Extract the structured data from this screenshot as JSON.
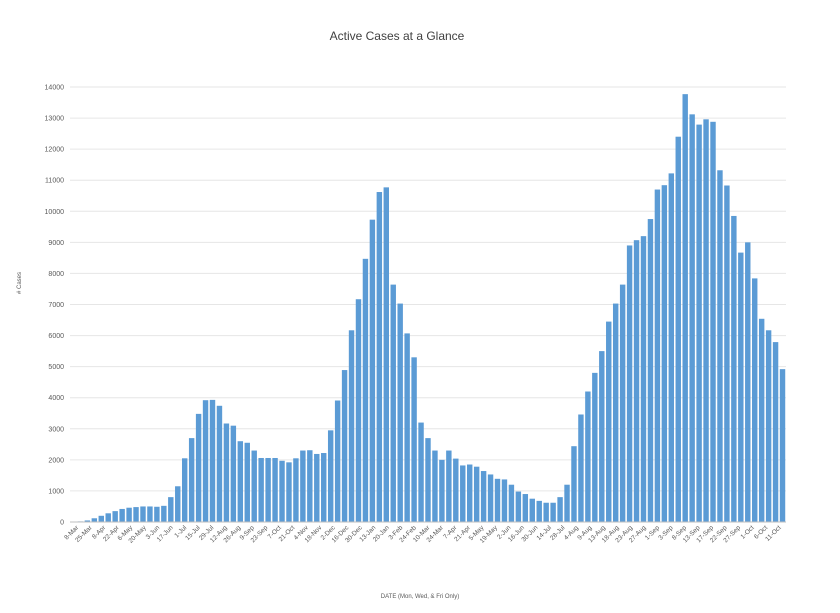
{
  "chart_data": {
    "type": "bar",
    "title": "Active Cases at a Glance",
    "xlabel": "DATE  (Mon, Wed, & Fri Only)",
    "ylabel": "# Cases",
    "ylim": [
      0,
      14000
    ],
    "yticks": [
      0,
      1000,
      2000,
      3000,
      4000,
      5000,
      6000,
      7000,
      8000,
      9000,
      10000,
      11000,
      12000,
      13000,
      14000
    ],
    "grid": true,
    "legend": "none",
    "bar_color": "#5b9bd5",
    "x_tick_labels": [
      "8-Mar",
      "25-Mar",
      "8-Apr",
      "22-Apr",
      "6-May",
      "20-May",
      "3-Jun",
      "17-Jun",
      "1-Jul",
      "15-Jul",
      "29-Jul",
      "12-Aug",
      "26-Aug",
      "9-Sep",
      "23-Sep",
      "7-Oct",
      "21-Oct",
      "4-Nov",
      "18-Nov",
      "2-Dec",
      "16-Dec",
      "30-Dec",
      "13-Jan",
      "20-Jan",
      "3-Feb",
      "24-Feb",
      "10-Mar",
      "24-Mar",
      "7-Apr",
      "21-Apr",
      "5-May",
      "19-May",
      "2-Jun",
      "16-Jun",
      "30-Jun",
      "14-Jul",
      "28-Jul",
      "4-Aug",
      "9-Aug",
      "13-Aug",
      "18-Aug",
      "23-Aug",
      "27-Aug",
      "1-Sep",
      "3-Sep",
      "8-Sep",
      "13-Sep",
      "17-Sep",
      "22-Sep",
      "27-Sep",
      "1-Oct",
      "6-Oct",
      "11-Oct"
    ],
    "values": [
      0,
      20,
      50,
      120,
      200,
      280,
      350,
      420,
      460,
      480,
      500,
      500,
      490,
      520,
      800,
      1150,
      2050,
      2700,
      3480,
      3920,
      3930,
      3740,
      3170,
      3100,
      2600,
      2550,
      2300,
      2060,
      2060,
      2060,
      1970,
      1920,
      2050,
      2300,
      2310,
      2190,
      2220,
      2950,
      3910,
      4890,
      6170,
      7170,
      8470,
      9730,
      10620,
      10770,
      7640,
      7030,
      6070,
      5300,
      3200,
      2700,
      2300,
      2000,
      2300,
      2040,
      1820,
      1850,
      1780,
      1640,
      1530,
      1390,
      1370,
      1200,
      980,
      900,
      750,
      680,
      620,
      620,
      800,
      1200,
      2440,
      3460,
      4200,
      4800,
      5500,
      6450,
      7030,
      7640,
      8900,
      9070,
      9200,
      9750,
      10700,
      10840,
      11220,
      12400,
      13770,
      13120,
      12790,
      12960,
      12880,
      11320,
      10830,
      9850,
      8670,
      9000,
      7840,
      6540,
      6170,
      5790,
      4920
    ]
  }
}
